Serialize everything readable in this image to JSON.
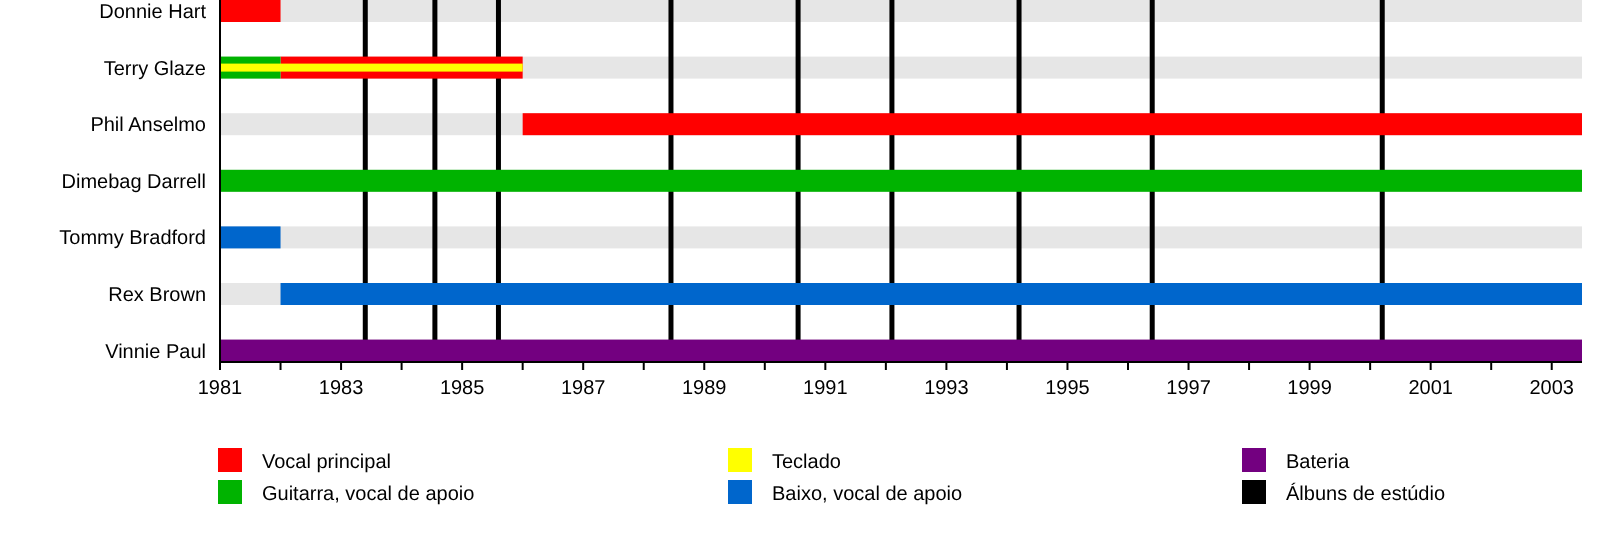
{
  "chart_data": {
    "type": "bar",
    "orientation": "horizontal",
    "categories": [
      "Donnie Hart",
      "Terry Glaze",
      "Phil Anselmo",
      "Dimebag Darrell",
      "Tommy Bradford",
      "Rex Brown",
      "Vinnie Paul"
    ],
    "series": [
      {
        "name": "Vocal principal",
        "color": "#ff0000",
        "base": [
          1981,
          1982,
          1986,
          null,
          null,
          null,
          null
        ],
        "values": [
          1,
          4,
          17.5,
          null,
          null,
          null,
          null
        ]
      },
      {
        "name": "Guitarra, vocal de apoio",
        "color": "#00b300",
        "base": [
          null,
          1981,
          null,
          1981,
          null,
          null,
          null
        ],
        "values": [
          null,
          1,
          null,
          22.5,
          null,
          null,
          null
        ]
      },
      {
        "name": "Teclado",
        "color": "#ffff00",
        "base": [
          null,
          1981,
          null,
          null,
          null,
          null,
          null
        ],
        "values": [
          null,
          5,
          null,
          null,
          null,
          null,
          null
        ]
      },
      {
        "name": "Baixo, vocal de apoio",
        "color": "#0066cc",
        "base": [
          null,
          null,
          null,
          null,
          1981,
          1982,
          null
        ],
        "values": [
          null,
          null,
          null,
          null,
          1,
          21.5,
          null
        ]
      },
      {
        "name": "Bateria",
        "color": "#730080",
        "base": [
          null,
          null,
          null,
          null,
          null,
          null,
          1981
        ],
        "values": [
          null,
          null,
          null,
          null,
          null,
          null,
          22.5
        ]
      }
    ],
    "xlim": [
      1981,
      2003.5
    ],
    "xticks": [
      1981,
      {
        "value": 1982,
        "label": null
      },
      1983,
      {
        "value": 1984,
        "label": null
      },
      1985,
      {
        "value": 1986,
        "label": null
      },
      1987,
      {
        "value": 1988,
        "label": null
      },
      1989,
      {
        "value": 1990,
        "label": null
      },
      1991,
      {
        "value": 1992,
        "label": null
      },
      1993,
      {
        "value": 1994,
        "label": null
      },
      1995,
      {
        "value": 1996,
        "label": null
      },
      1997,
      {
        "value": 1998,
        "label": null
      },
      1999,
      {
        "value": 2000,
        "label": null
      },
      2001,
      {
        "value": 2002,
        "label": null
      },
      2003
    ],
    "ref_lines": [
      {
        "axis": "x",
        "value": 1983.4,
        "label": "Álbuns de estúdio",
        "color": "#000000"
      },
      {
        "axis": "x",
        "value": 1984.55,
        "color": "#000000"
      },
      {
        "axis": "x",
        "value": 1985.6,
        "color": "#000000"
      },
      {
        "axis": "x",
        "value": 1988.45,
        "color": "#000000"
      },
      {
        "axis": "x",
        "value": 1990.55,
        "color": "#000000"
      },
      {
        "axis": "x",
        "value": 1992.1,
        "color": "#000000"
      },
      {
        "axis": "x",
        "value": 1994.2,
        "color": "#000000"
      },
      {
        "axis": "x",
        "value": 1996.4,
        "color": "#000000"
      },
      {
        "axis": "x",
        "value": 2000.2,
        "color": "#000000"
      }
    ],
    "legend": "bottom"
  }
}
